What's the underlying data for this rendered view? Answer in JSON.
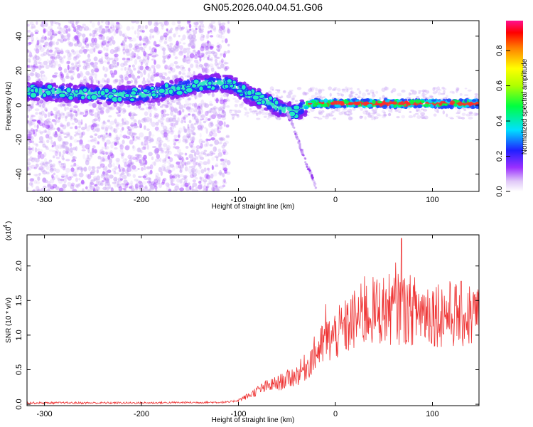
{
  "figure": {
    "title": "GN05.2026.040.04.51.G06"
  },
  "chart_data": [
    {
      "type": "heatmap",
      "title": "",
      "xlabel": "Height of straight line (km)",
      "ylabel": "Frequency (Hz)",
      "xlim": [
        -318,
        148
      ],
      "ylim": [
        -50,
        49
      ],
      "x_ticks": [
        -300,
        -200,
        -100,
        0,
        100
      ],
      "x_tick_labels": [
        "-300",
        "-200",
        "-100",
        "0",
        "100"
      ],
      "y_ticks": [
        -40,
        -20,
        0,
        20,
        40
      ],
      "y_tick_labels": [
        "-40",
        "-20",
        "0",
        "20",
        "40"
      ],
      "colorbar": {
        "label": "Normalized spectral amplitude",
        "range": [
          0,
          0.97
        ],
        "ticks": [
          0.0,
          0.2,
          0.4,
          0.6,
          0.8
        ],
        "tick_labels": [
          "0.0",
          "0.2",
          "0.4",
          "0.6",
          "0.8"
        ]
      },
      "ridge": {
        "x": [
          -315,
          -300,
          -280,
          -260,
          -240,
          -220,
          -200,
          -180,
          -160,
          -140,
          -120,
          -110,
          -100,
          -90,
          -80,
          -70,
          -60,
          -50,
          -45,
          -40,
          -35,
          -30,
          -25,
          -20,
          -10,
          0,
          20,
          50,
          80,
          110,
          145
        ],
        "y": [
          8,
          8,
          7,
          7,
          6,
          6,
          6,
          8,
          10,
          12,
          13,
          12,
          10,
          6,
          4,
          2,
          -1,
          -3,
          -4,
          -4,
          -2,
          0,
          1,
          1,
          1,
          1,
          1,
          1,
          1,
          1,
          1
        ]
      },
      "branch": {
        "x": [
          -50,
          -45,
          -40,
          -35,
          -30,
          -25,
          -20
        ],
        "y": [
          -4,
          -10,
          -18,
          -26,
          -34,
          -40,
          -48
        ]
      },
      "grid": false
    },
    {
      "type": "line",
      "title": "",
      "xlabel": "Height of straight line (km)",
      "ylabel": "SNR (10 * v/v)",
      "y_multiplier": "(x10",
      "y_multiplier_exp": "4",
      "xlim": [
        -318,
        148
      ],
      "ylim": [
        -0.02,
        2.45
      ],
      "x_ticks": [
        -300,
        -200,
        -100,
        0,
        100
      ],
      "x_tick_labels": [
        "-300",
        "-200",
        "-100",
        "0",
        "100"
      ],
      "y_ticks": [
        0.0,
        0.5,
        1.0,
        1.5,
        2.0
      ],
      "y_tick_labels": [
        "0.0",
        "0.5",
        "1.0",
        "1.5",
        "2.0"
      ],
      "envelope": {
        "x": [
          -318,
          -200,
          -110,
          -100,
          -90,
          -80,
          -70,
          -60,
          -50,
          -40,
          -30,
          -20,
          -10,
          0,
          10,
          20,
          30,
          40,
          60,
          80,
          100,
          120,
          148
        ],
        "y": [
          0.02,
          0.02,
          0.03,
          0.06,
          0.12,
          0.2,
          0.26,
          0.3,
          0.36,
          0.42,
          0.55,
          0.75,
          0.9,
          1.0,
          1.1,
          1.22,
          1.3,
          1.35,
          1.38,
          1.36,
          1.34,
          1.3,
          1.28
        ]
      },
      "peaks": [
        {
          "x": 68,
          "y": 2.4
        },
        {
          "x": 62,
          "y": 2.05
        },
        {
          "x": -10,
          "y": 1.45
        },
        {
          "x": 30,
          "y": 1.85
        }
      ],
      "color": "#ee3333",
      "grid": false
    }
  ]
}
